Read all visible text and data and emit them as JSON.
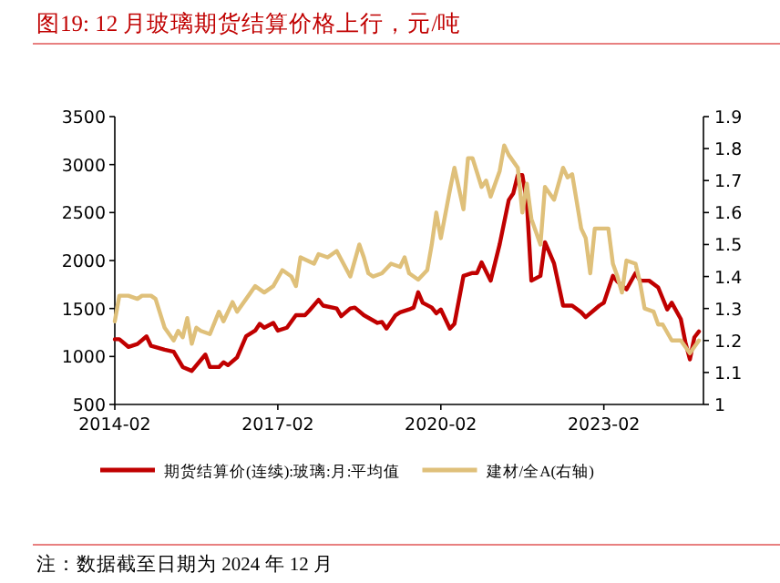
{
  "chart_data": {
    "type": "line",
    "title": "图19:   12 月玻璃期货结算价格上行，元/吨",
    "xlim": [
      "2014-02",
      "2024-12"
    ],
    "xticks": [
      "2014-02",
      "2017-02",
      "2020-02",
      "2023-02"
    ],
    "ylim": [
      500,
      3500
    ],
    "yticks": [
      500,
      1000,
      1500,
      2000,
      2500,
      3000,
      3500
    ],
    "y2lim": [
      1,
      1.9
    ],
    "y2ticks": [
      1,
      1.1,
      1.2,
      1.3,
      1.4,
      1.5,
      1.6,
      1.7,
      1.8,
      1.9
    ],
    "grid": false,
    "legend": "bottom",
    "annotations": [
      "注：数据截至日期为 2024 年 12 月"
    ],
    "series": [
      {
        "name": "期货结算价(连续):玻璃:月:平均值",
        "color": "#c00000",
        "x": [
          "2014-02",
          "2014-03",
          "2014-05",
          "2014-07",
          "2014-09",
          "2014-10",
          "2015-01",
          "2015-03",
          "2015-05",
          "2015-07",
          "2015-10",
          "2015-11",
          "2016-01",
          "2016-02",
          "2016-03",
          "2016-05",
          "2016-07",
          "2016-09",
          "2016-10",
          "2016-11",
          "2017-01",
          "2017-02",
          "2017-04",
          "2017-06",
          "2017-08",
          "2017-09",
          "2017-11",
          "2017-12",
          "2018-03",
          "2018-04",
          "2018-06",
          "2018-07",
          "2018-09",
          "2018-12",
          "2019-01",
          "2019-02",
          "2019-04",
          "2019-05",
          "2019-07",
          "2019-08",
          "2019-09",
          "2019-10",
          "2019-12",
          "2020-01",
          "2020-02",
          "2020-04",
          "2020-05",
          "2020-07",
          "2020-09",
          "2020-10",
          "2020-11",
          "2021-01",
          "2021-02",
          "2021-03",
          "2021-05",
          "2021-06",
          "2021-07",
          "2021-08",
          "2021-09",
          "2021-10",
          "2021-12",
          "2022-01",
          "2022-03",
          "2022-05",
          "2022-07",
          "2022-09",
          "2022-10",
          "2022-12",
          "2023-01",
          "2023-02",
          "2023-04",
          "2023-05",
          "2023-07",
          "2023-09",
          "2023-10",
          "2023-12",
          "2024-02",
          "2024-04",
          "2024-05",
          "2024-07",
          "2024-08",
          "2024-09",
          "2024-10",
          "2024-11"
        ],
        "values": [
          1180,
          1180,
          1100,
          1130,
          1210,
          1110,
          1070,
          1050,
          890,
          850,
          1020,
          890,
          890,
          940,
          910,
          990,
          1210,
          1270,
          1340,
          1300,
          1350,
          1270,
          1300,
          1430,
          1430,
          1480,
          1590,
          1530,
          1500,
          1420,
          1500,
          1510,
          1430,
          1350,
          1360,
          1290,
          1430,
          1460,
          1490,
          1510,
          1670,
          1560,
          1510,
          1450,
          1490,
          1290,
          1340,
          1840,
          1870,
          1870,
          1980,
          1790,
          1980,
          2170,
          2630,
          2700,
          2890,
          2890,
          2610,
          1790,
          1840,
          2190,
          1970,
          1530,
          1530,
          1460,
          1410,
          1490,
          1530,
          1560,
          1840,
          1780,
          1700,
          1870,
          1790,
          1790,
          1720,
          1490,
          1560,
          1390,
          1150,
          970,
          1200,
          1260
        ]
      },
      {
        "name": "建材/全A(右轴)",
        "color": "#dfc07a",
        "axis": "y2",
        "x": [
          "2014-02",
          "2014-03",
          "2014-05",
          "2014-07",
          "2014-08",
          "2014-10",
          "2014-11",
          "2015-01",
          "2015-03",
          "2015-04",
          "2015-05",
          "2015-06",
          "2015-07",
          "2015-08",
          "2015-09",
          "2015-11",
          "2016-01",
          "2016-02",
          "2016-04",
          "2016-05",
          "2016-08",
          "2016-09",
          "2016-11",
          "2017-01",
          "2017-03",
          "2017-05",
          "2017-06",
          "2017-07",
          "2017-10",
          "2017-11",
          "2018-01",
          "2018-03",
          "2018-06",
          "2018-08",
          "2018-09",
          "2018-10",
          "2018-11",
          "2019-01",
          "2019-03",
          "2019-05",
          "2019-06",
          "2019-07",
          "2019-09",
          "2019-11",
          "2019-12",
          "2020-01",
          "2020-02",
          "2020-04",
          "2020-05",
          "2020-07",
          "2020-08",
          "2020-09",
          "2020-11",
          "2020-12",
          "2021-01",
          "2021-03",
          "2021-04",
          "2021-05",
          "2021-07",
          "2021-08",
          "2021-09",
          "2021-10",
          "2021-12",
          "2022-01",
          "2022-03",
          "2022-05",
          "2022-06",
          "2022-07",
          "2022-09",
          "2022-10",
          "2022-11",
          "2022-12",
          "2023-01",
          "2023-03",
          "2023-04",
          "2023-05",
          "2023-06",
          "2023-07",
          "2023-09",
          "2023-10",
          "2023-11",
          "2024-01",
          "2024-02",
          "2024-03",
          "2024-05",
          "2024-07",
          "2024-09",
          "2024-10",
          "2024-11"
        ],
        "values": [
          1.26,
          1.34,
          1.34,
          1.33,
          1.34,
          1.34,
          1.33,
          1.24,
          1.2,
          1.23,
          1.21,
          1.27,
          1.19,
          1.24,
          1.23,
          1.22,
          1.29,
          1.26,
          1.32,
          1.29,
          1.35,
          1.37,
          1.35,
          1.37,
          1.42,
          1.4,
          1.37,
          1.46,
          1.44,
          1.47,
          1.46,
          1.48,
          1.4,
          1.5,
          1.46,
          1.41,
          1.4,
          1.41,
          1.44,
          1.43,
          1.46,
          1.41,
          1.39,
          1.42,
          1.5,
          1.6,
          1.52,
          1.67,
          1.74,
          1.61,
          1.77,
          1.77,
          1.68,
          1.7,
          1.65,
          1.73,
          1.81,
          1.78,
          1.74,
          1.6,
          1.69,
          1.58,
          1.5,
          1.68,
          1.64,
          1.74,
          1.71,
          1.72,
          1.55,
          1.52,
          1.41,
          1.55,
          1.55,
          1.55,
          1.44,
          1.4,
          1.35,
          1.45,
          1.44,
          1.38,
          1.3,
          1.29,
          1.25,
          1.25,
          1.2,
          1.2,
          1.16,
          1.18,
          1.2
        ]
      }
    ]
  }
}
